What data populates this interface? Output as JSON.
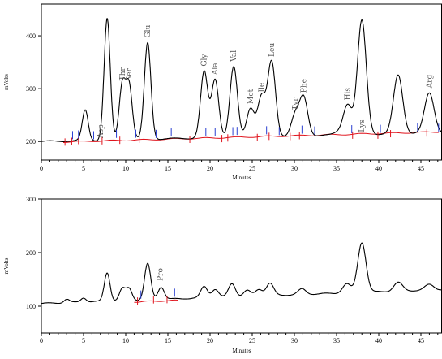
{
  "chart_data": [
    {
      "type": "line",
      "xlabel": "Minutes",
      "ylabel": "mVolts",
      "xlim": [
        0,
        47.5
      ],
      "ylim": [
        165,
        460
      ],
      "x_ticks": [
        "0",
        "5",
        "10",
        "15",
        "20",
        "25",
        "30",
        "35",
        "40",
        "45"
      ],
      "y_ticks": [
        "200",
        "300",
        "400"
      ],
      "baseline_value": 200,
      "peaks": [
        {
          "label": "",
          "time": 5.2,
          "height": 260
        },
        {
          "label": "",
          "time": 7.8,
          "height": 433
        },
        {
          "label": "Asp",
          "time": 7.8,
          "height": 433
        },
        {
          "label": "Thr",
          "time": 9.6,
          "height": 306
        },
        {
          "label": "Ser",
          "time": 10.4,
          "height": 305
        },
        {
          "label": "Glu",
          "time": 12.6,
          "height": 387
        },
        {
          "label": "Gly",
          "time": 19.3,
          "height": 333
        },
        {
          "label": "Ala",
          "time": 20.6,
          "height": 317
        },
        {
          "label": "Val",
          "time": 22.8,
          "height": 342
        },
        {
          "label": "Met",
          "time": 24.8,
          "height": 262
        },
        {
          "label": "Ile",
          "time": 26.1,
          "height": 284
        },
        {
          "label": "Leu",
          "time": 27.3,
          "height": 351
        },
        {
          "label": "Tyr",
          "time": 30.1,
          "height": 250
        },
        {
          "label": "Phe",
          "time": 31.1,
          "height": 283
        },
        {
          "label": "",
          "time": 35.2,
          "height": 217
        },
        {
          "label": "His",
          "time": 36.3,
          "height": 269
        },
        {
          "label": "Lys",
          "time": 38.0,
          "height": 430
        },
        {
          "label": "",
          "time": 42.3,
          "height": 326
        },
        {
          "label": "Arg",
          "time": 46.0,
          "height": 292
        }
      ],
      "integration_marks": {
        "red": [
          2.8,
          3.6,
          4.4,
          7.2,
          9.3,
          11.6,
          17.6,
          21.4,
          22.1,
          25.6,
          27.0,
          29.5,
          30.6,
          36.9,
          39.9,
          41.4,
          45.7
        ],
        "blue": [
          3.7,
          4.4,
          6.2,
          8.9,
          11.2,
          13.6,
          15.4,
          19.5,
          20.6,
          22.7,
          23.2,
          26.7,
          28.2,
          30.9,
          32.4,
          36.8,
          40.2,
          44.6,
          47.1
        ]
      }
    },
    {
      "type": "line",
      "xlabel": "Minutes",
      "ylabel": "mVolts",
      "xlim": [
        0,
        47.5
      ],
      "ylim": [
        50,
        300
      ],
      "x_ticks": [
        "0",
        "5",
        "10",
        "15",
        "20",
        "25",
        "30",
        "35",
        "40",
        "45"
      ],
      "y_ticks": [
        "100",
        "200",
        "300"
      ],
      "baseline_value": 105,
      "peaks": [
        {
          "label": "",
          "time": 3.0,
          "height": 113
        },
        {
          "label": "",
          "time": 5.0,
          "height": 115
        },
        {
          "label": "",
          "time": 7.8,
          "height": 162
        },
        {
          "label": "",
          "time": 9.6,
          "height": 133
        },
        {
          "label": "",
          "time": 10.4,
          "height": 133
        },
        {
          "label": "",
          "time": 12.6,
          "height": 180
        },
        {
          "label": "Pro",
          "time": 14.2,
          "height": 135
        },
        {
          "label": "",
          "time": 19.3,
          "height": 137
        },
        {
          "label": "",
          "time": 20.6,
          "height": 131
        },
        {
          "label": "",
          "time": 22.6,
          "height": 142
        },
        {
          "label": "",
          "time": 24.4,
          "height": 130
        },
        {
          "label": "",
          "time": 25.8,
          "height": 131
        },
        {
          "label": "",
          "time": 27.1,
          "height": 143
        },
        {
          "label": "",
          "time": 30.9,
          "height": 133
        },
        {
          "label": "",
          "time": 36.2,
          "height": 142
        },
        {
          "label": "",
          "time": 38.0,
          "height": 218
        },
        {
          "label": "",
          "time": 42.3,
          "height": 145
        },
        {
          "label": "",
          "time": 46.0,
          "height": 141
        }
      ],
      "integration_marks": {
        "red": [
          11.4,
          13.3,
          14.9
        ],
        "blue": [
          11.8,
          15.8,
          16.2
        ]
      }
    }
  ]
}
